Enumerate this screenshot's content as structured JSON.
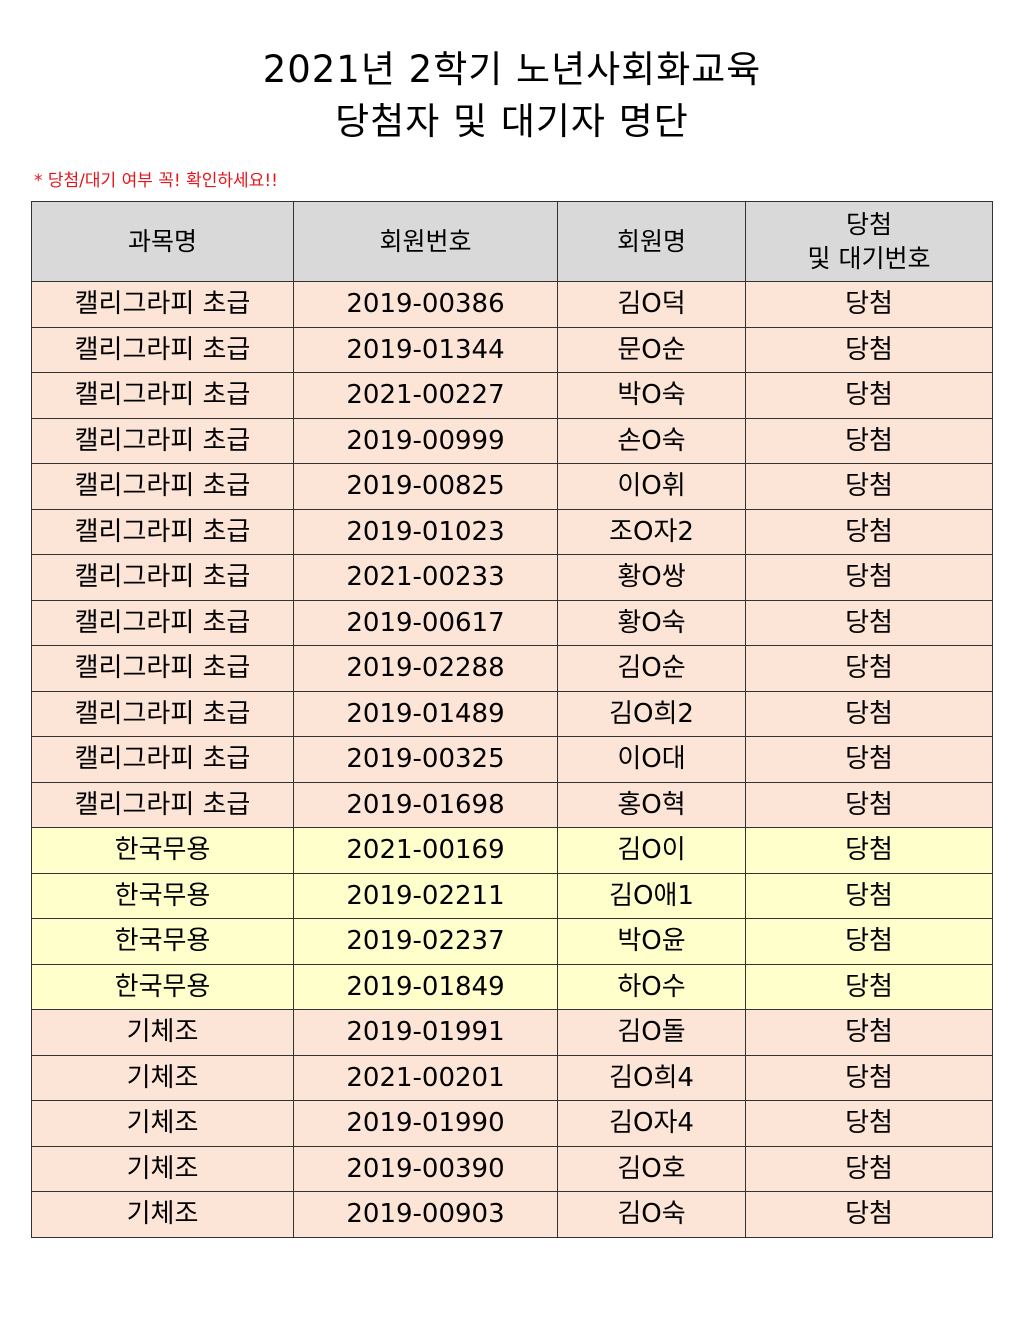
{
  "document": {
    "title_line1": "2021년 2학기 노년사회화교육",
    "title_line2": "당첨자 및 대기자 명단",
    "notice": "* 당첨/대기 여부 꼭! 확인하세요!!"
  },
  "table": {
    "headers": {
      "course": "과목명",
      "member_no": "회원번호",
      "member_name": "회원명",
      "status_line1": "당첨",
      "status_line2": "및 대기번호"
    },
    "rows": [
      {
        "course": "캘리그라피 초급",
        "member_no": "2019-00386",
        "member_name": "김O덕",
        "status": "당첨",
        "category": "calligraphy"
      },
      {
        "course": "캘리그라피 초급",
        "member_no": "2019-01344",
        "member_name": "문O순",
        "status": "당첨",
        "category": "calligraphy"
      },
      {
        "course": "캘리그라피 초급",
        "member_no": "2021-00227",
        "member_name": "박O숙",
        "status": "당첨",
        "category": "calligraphy"
      },
      {
        "course": "캘리그라피 초급",
        "member_no": "2019-00999",
        "member_name": "손O숙",
        "status": "당첨",
        "category": "calligraphy"
      },
      {
        "course": "캘리그라피 초급",
        "member_no": "2019-00825",
        "member_name": "이O휘",
        "status": "당첨",
        "category": "calligraphy"
      },
      {
        "course": "캘리그라피 초급",
        "member_no": "2019-01023",
        "member_name": "조O자2",
        "status": "당첨",
        "category": "calligraphy"
      },
      {
        "course": "캘리그라피 초급",
        "member_no": "2021-00233",
        "member_name": "황O쌍",
        "status": "당첨",
        "category": "calligraphy"
      },
      {
        "course": "캘리그라피 초급",
        "member_no": "2019-00617",
        "member_name": "황O숙",
        "status": "당첨",
        "category": "calligraphy"
      },
      {
        "course": "캘리그라피 초급",
        "member_no": "2019-02288",
        "member_name": "김O순",
        "status": "당첨",
        "category": "calligraphy"
      },
      {
        "course": "캘리그라피 초급",
        "member_no": "2019-01489",
        "member_name": "김O희2",
        "status": "당첨",
        "category": "calligraphy"
      },
      {
        "course": "캘리그라피 초급",
        "member_no": "2019-00325",
        "member_name": "이O대",
        "status": "당첨",
        "category": "calligraphy"
      },
      {
        "course": "캘리그라피 초급",
        "member_no": "2019-01698",
        "member_name": "홍O혁",
        "status": "당첨",
        "category": "calligraphy"
      },
      {
        "course": "한국무용",
        "member_no": "2021-00169",
        "member_name": "김O이",
        "status": "당첨",
        "category": "dance"
      },
      {
        "course": "한국무용",
        "member_no": "2019-02211",
        "member_name": "김O애1",
        "status": "당첨",
        "category": "dance"
      },
      {
        "course": "한국무용",
        "member_no": "2019-02237",
        "member_name": "박O윤",
        "status": "당첨",
        "category": "dance"
      },
      {
        "course": "한국무용",
        "member_no": "2019-01849",
        "member_name": "하O수",
        "status": "당첨",
        "category": "dance"
      },
      {
        "course": "기체조",
        "member_no": "2019-01991",
        "member_name": "김O돌",
        "status": "당첨",
        "category": "gym"
      },
      {
        "course": "기체조",
        "member_no": "2021-00201",
        "member_name": "김O희4",
        "status": "당첨",
        "category": "gym"
      },
      {
        "course": "기체조",
        "member_no": "2019-01990",
        "member_name": "김O자4",
        "status": "당첨",
        "category": "gym"
      },
      {
        "course": "기체조",
        "member_no": "2019-00390",
        "member_name": "김O호",
        "status": "당첨",
        "category": "gym"
      },
      {
        "course": "기체조",
        "member_no": "2019-00903",
        "member_name": "김O숙",
        "status": "당첨",
        "category": "gym"
      }
    ]
  },
  "colors": {
    "notice_text": "#e8141c",
    "header_bg": "#d9d9d9",
    "calligraphy_bg": "#fce4d6",
    "dance_bg": "#ffffcc",
    "gym_bg": "#fce4d6"
  }
}
